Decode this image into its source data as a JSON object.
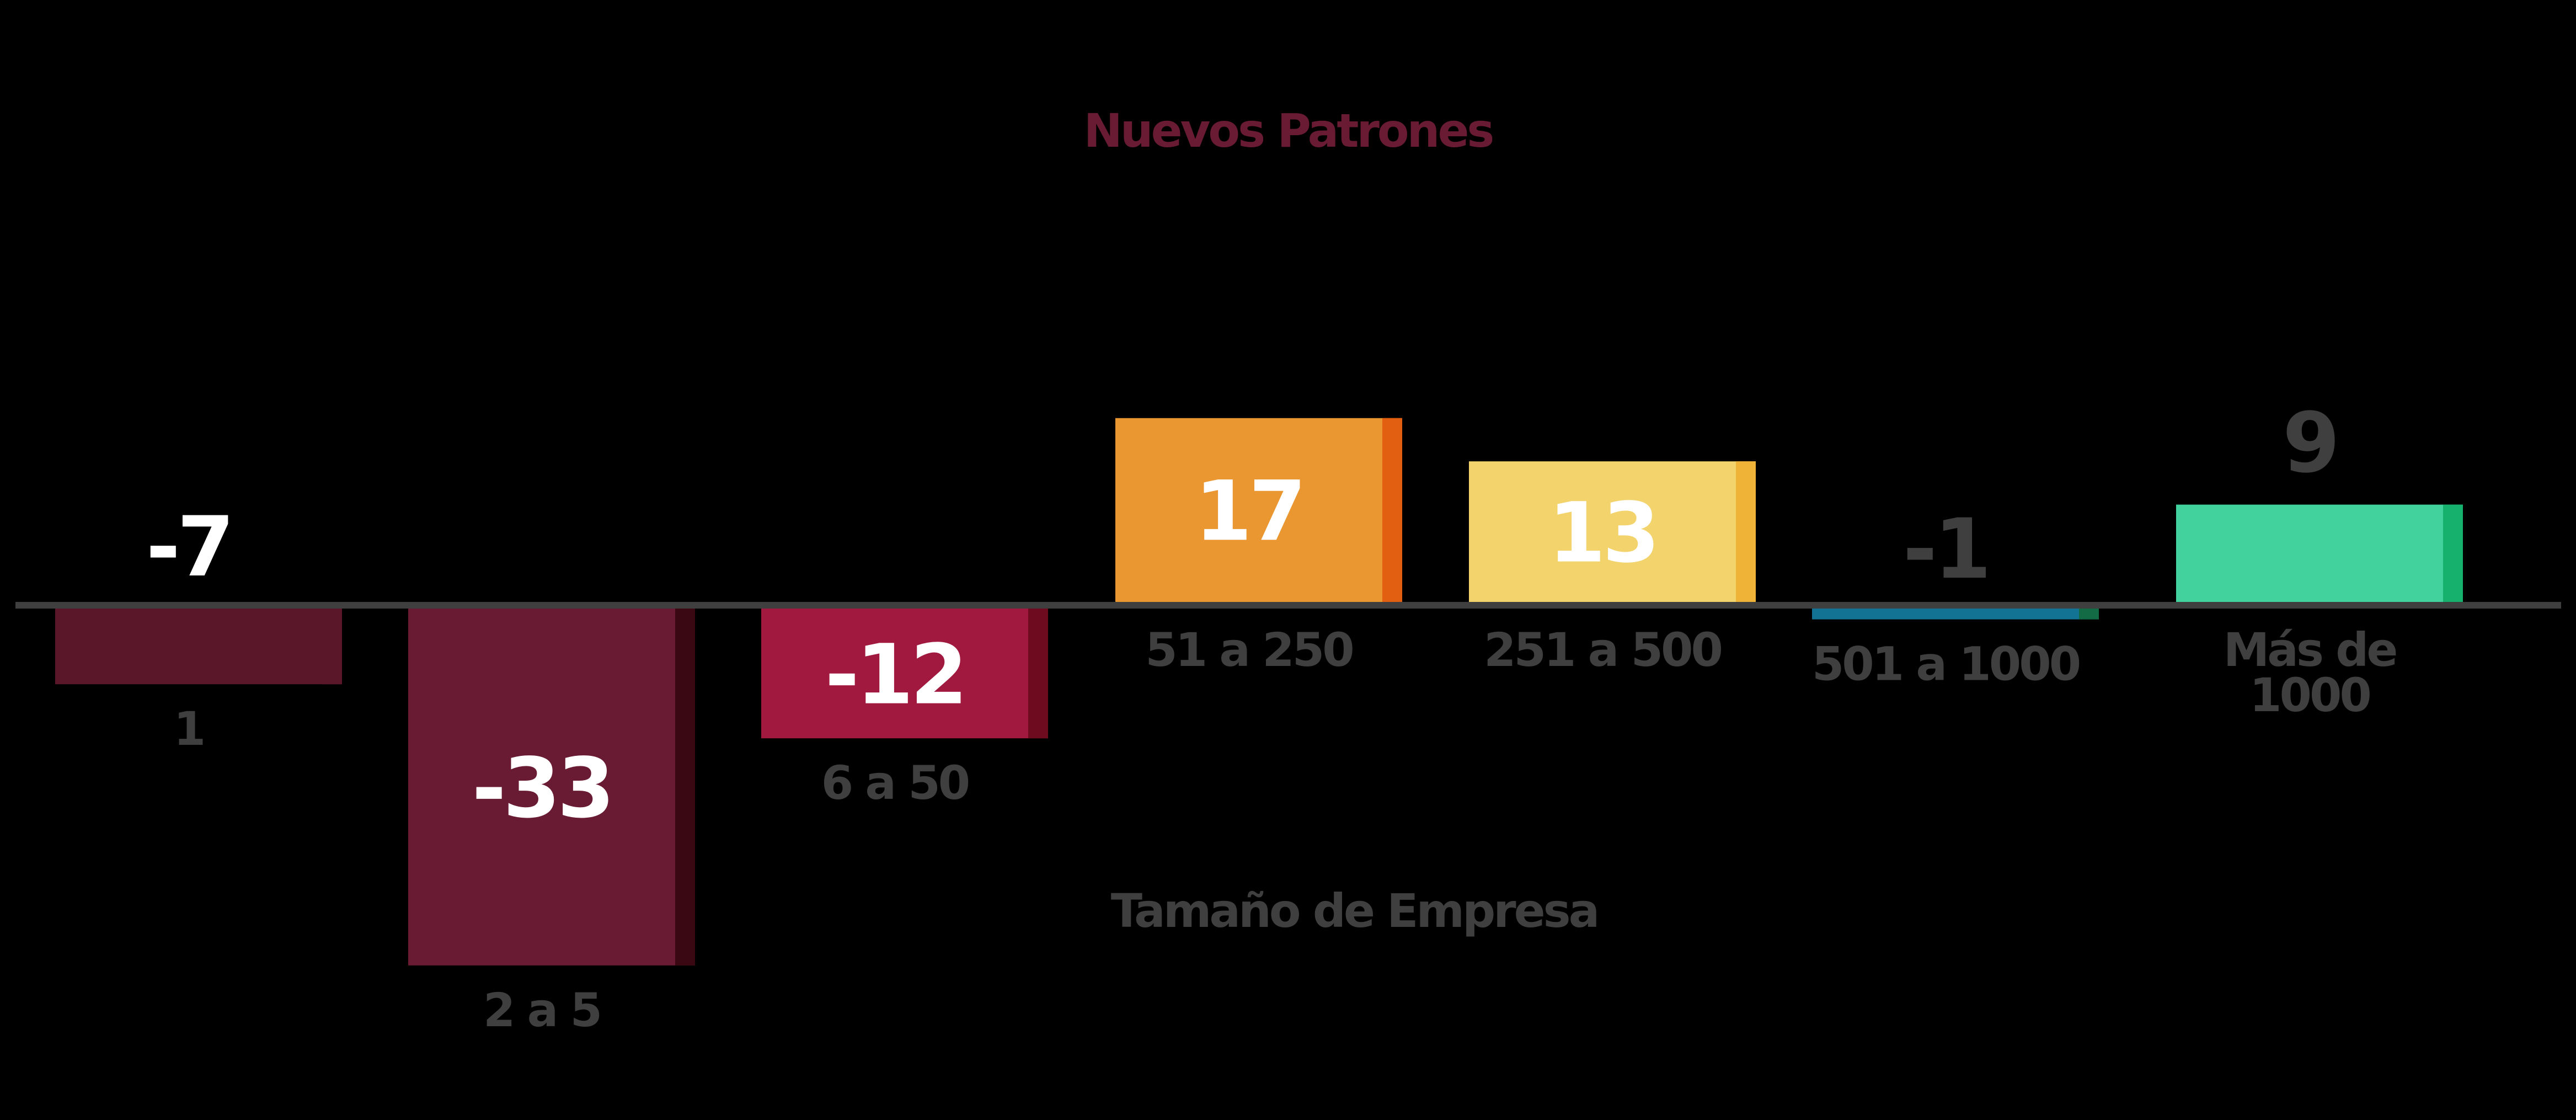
{
  "chart_data": {
    "type": "bar",
    "title": "Nuevos Patrones",
    "xlabel": "Tamaño de Empresa",
    "ylabel": "",
    "categories": [
      "1",
      "2 a 5",
      "6 a 50",
      "51 a 250",
      "251 a 500",
      "501 a 1000",
      "Más de 1000"
    ],
    "category_lines": [
      [
        "1"
      ],
      [
        "2 a 5"
      ],
      [
        "6 a 50"
      ],
      [
        "51 a 250"
      ],
      [
        "251 a 500"
      ],
      [
        "501 a 1000"
      ],
      [
        "Más de",
        "1000"
      ]
    ],
    "values": [
      -7,
      -33,
      -12,
      17,
      13,
      -1,
      9
    ],
    "value_labels": [
      "-7",
      "-33",
      "-12",
      "17",
      "13",
      "-1",
      "9"
    ],
    "bar_colors": [
      "#5a1729",
      "#691b33",
      "#a1193f",
      "#ea9731",
      "#f3d36c",
      "#127394",
      "#41d29e"
    ],
    "bar_side_colors": [
      "#5a1729",
      "#3a0812",
      "#6e0b1f",
      "#e25e10",
      "#efb437",
      "#136b45",
      "#16b26d"
    ],
    "value_label_colors": [
      "#ffffff",
      "#ffffff",
      "#ffffff",
      "#ffffff",
      "#ffffff",
      "#3f3f3f",
      "#3f3f3f"
    ],
    "title_color": "#691b33",
    "label_color": "#3f3f3f",
    "axis_color": "#3f3f3f",
    "grid": false,
    "legend": "none"
  }
}
